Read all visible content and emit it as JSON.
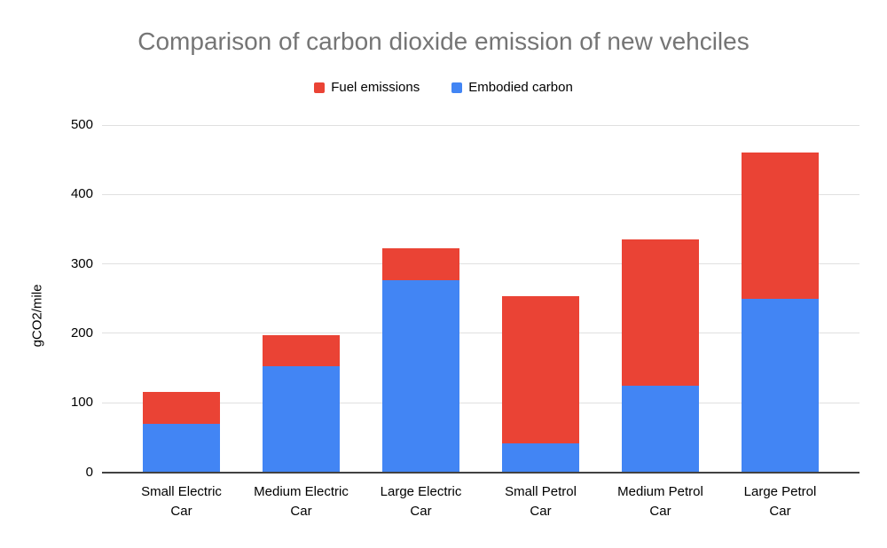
{
  "chart_data": {
    "type": "bar",
    "stacked": true,
    "title": "Comparison of carbon dioxide emission of new vehciles",
    "categories": [
      "Small Electric Car",
      "Medium Electric Car",
      "Large Electric Car",
      "Small Petrol Car",
      "Medium Petrol Car",
      "Large Petrol Car"
    ],
    "series": [
      {
        "name": "Embodied carbon",
        "color": "#4285f4",
        "values": [
          70,
          152,
          277,
          42,
          125,
          250
        ]
      },
      {
        "name": "Fuel emissions",
        "color": "#ea4335",
        "values": [
          45,
          45,
          45,
          211,
          210,
          210
        ]
      }
    ],
    "totals": [
      115,
      197,
      322,
      253,
      335,
      460
    ],
    "xlabel": "",
    "ylabel": "gCO2/mile",
    "ylim": [
      0,
      500
    ],
    "yticks": [
      0,
      100,
      200,
      300,
      400,
      500
    ],
    "grid": true,
    "legend_position": "top"
  },
  "legend": {
    "items": [
      {
        "label": "Fuel emissions",
        "color": "#ea4335"
      },
      {
        "label": "Embodied carbon",
        "color": "#4285f4"
      }
    ]
  },
  "colors": {
    "bar_blue": "#4285f4",
    "bar_red": "#ea4335",
    "title_gray": "#757575",
    "gridline_gray": "#e0e0e0",
    "baseline_dark": "#424242",
    "text_black": "#000000",
    "background": "#ffffff"
  }
}
